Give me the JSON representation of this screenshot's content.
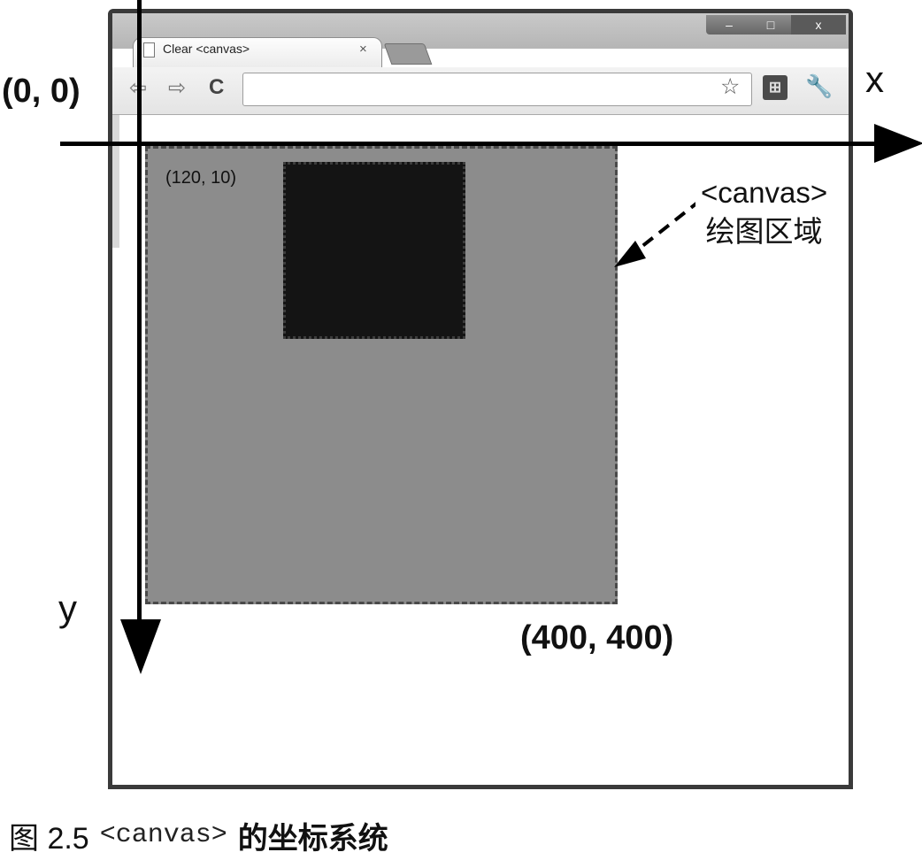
{
  "browser": {
    "tab_title": "Clear <canvas>",
    "tab_close": "×",
    "window_buttons": {
      "minimize": "–",
      "maximize": "□",
      "close": "x"
    },
    "nav": {
      "back": "⇦",
      "forward": "⇨",
      "reload": "C"
    }
  },
  "diagram": {
    "origin_label": "(0, 0)",
    "x_axis_label": "x",
    "y_axis_label": "y",
    "rect_corner_label": "(120, 10)",
    "canvas_end_label": "(400, 400)",
    "canvas_label_line1": "<canvas>",
    "canvas_label_line2": "绘图区域"
  },
  "caption": {
    "figure": "图 2.5",
    "code": "<canvas>",
    "text": "的坐标系统"
  },
  "colors": {
    "canvas_fill": "#8c8c8c",
    "rect_fill": "#141414",
    "axis": "#000000"
  },
  "icons": [
    "page-icon",
    "star-icon",
    "extension-icon",
    "wrench-icon",
    "back-icon",
    "forward-icon",
    "reload-icon"
  ]
}
